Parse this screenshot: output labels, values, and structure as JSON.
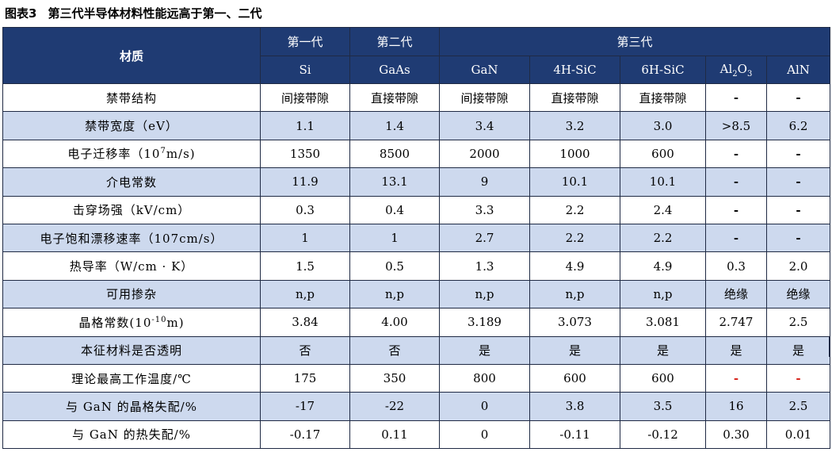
{
  "title": {
    "fig": "图表3",
    "text": "第三代半导体材料性能远高于第一、二代"
  },
  "header": {
    "row_label": "材质",
    "generations": [
      "第一代",
      "第二代",
      "第三代"
    ],
    "materials": [
      "Si",
      "GaAs",
      "GaN",
      "4H-SiC",
      "6H-SiC",
      "Al",
      "AlN"
    ],
    "al2o3_parts": [
      "Al",
      "2",
      "O",
      "3"
    ]
  },
  "rows": [
    {
      "label": "禁带结构",
      "values": [
        "间接带隙",
        "直接带隙",
        "间接带隙",
        "直接带隙",
        "直接带隙",
        "-",
        "-"
      ]
    },
    {
      "label": "禁带宽度（eV）",
      "values": [
        "1.1",
        "1.4",
        "3.4",
        "3.2",
        "3.0",
        ">8.5",
        "6.2"
      ]
    },
    {
      "label": "电子迁移率（10",
      "label_sup": "7",
      "label_tail": "m/s)",
      "values": [
        "1350",
        "8500",
        "2000",
        "1000",
        "600",
        "-",
        "-"
      ]
    },
    {
      "label": "介电常数",
      "values": [
        "11.9",
        "13.1",
        "9",
        "10.1",
        "10.1",
        "-",
        "-"
      ]
    },
    {
      "label": "击穿场强（kV/cm）",
      "values": [
        "0.3",
        "0.4",
        "3.3",
        "2.2",
        "2.4",
        "-",
        "-"
      ]
    },
    {
      "label": "电子饱和漂移速率（107cm/s）",
      "values": [
        "1",
        "1",
        "2.7",
        "2.2",
        "2.2",
        "-",
        "-"
      ]
    },
    {
      "label": "热导率（W/cm · K）",
      "values": [
        "1.5",
        "0.5",
        "1.3",
        "4.9",
        "4.9",
        "0.3",
        "2.0"
      ]
    },
    {
      "label": "可用掺杂",
      "values": [
        "n,p",
        "n,p",
        "n,p",
        "n,p",
        "n,p",
        "绝缘",
        "绝缘"
      ]
    },
    {
      "label": "晶格常数(10",
      "label_sup": "-10",
      "label_tail": "m)",
      "values": [
        "3.84",
        "4.00",
        "3.189",
        "3.073",
        "3.081",
        "2.747",
        "2.5"
      ]
    },
    {
      "label": "本征材料是否透明",
      "values": [
        "否",
        "否",
        "是",
        "是",
        "是",
        "是",
        "是"
      ]
    },
    {
      "label": "理论最高工作温度/℃",
      "values": [
        "175",
        "350",
        "800",
        "600",
        "600",
        "-",
        "-"
      ]
    },
    {
      "label": "与 GaN 的晶格失配/%",
      "values": [
        "-17",
        "-22",
        "0",
        "3.8",
        "3.5",
        "16",
        "2.5"
      ]
    },
    {
      "label": "与 GaN 的热失配/%",
      "values": [
        "-0.17",
        "0.11",
        "0",
        "-0.11",
        "-0.12",
        "0.30",
        "0.01"
      ]
    }
  ],
  "colors": {
    "header_bg": "#1f3b73",
    "alt_row_bg": "#cdd9ee",
    "red_dash": "#d8241c"
  }
}
